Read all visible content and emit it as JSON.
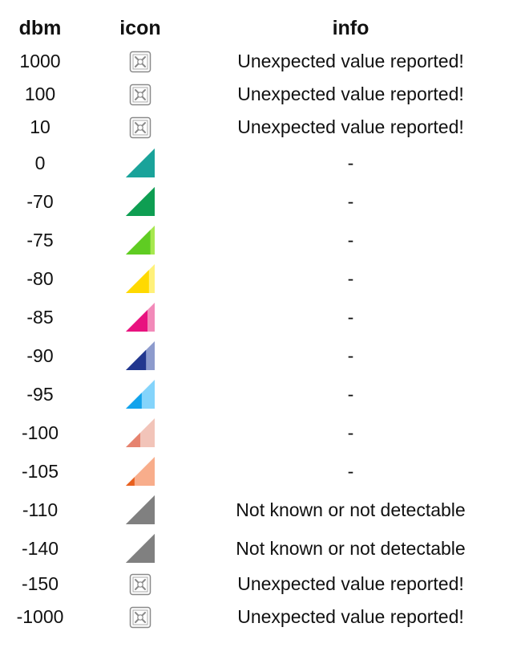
{
  "headers": {
    "dbm": "dbm",
    "icon": "icon",
    "info": "info"
  },
  "rows": [
    {
      "dbm": "1000",
      "icon": "broken-image-icon",
      "info": "Unexpected value reported!"
    },
    {
      "dbm": "100",
      "icon": "broken-image-icon",
      "info": "Unexpected value reported!"
    },
    {
      "dbm": "10",
      "icon": "broken-image-icon",
      "info": "Unexpected value reported!"
    },
    {
      "dbm": "0",
      "icon": "signal-full-icon",
      "info": "-",
      "colors": [
        "#1aa39a",
        "#1aa39a"
      ],
      "level": 1.0
    },
    {
      "dbm": "-70",
      "icon": "signal-full-icon",
      "info": "-",
      "colors": [
        "#0e9e52",
        "#0e9e52"
      ],
      "level": 1.0
    },
    {
      "dbm": "-75",
      "icon": "signal-high-icon",
      "info": "-",
      "colors": [
        "#5fcc22",
        "#a7e84f"
      ],
      "level": 0.85
    },
    {
      "dbm": "-80",
      "icon": "signal-high-icon",
      "info": "-",
      "colors": [
        "#ffd900",
        "#fff17a"
      ],
      "level": 0.8
    },
    {
      "dbm": "-85",
      "icon": "signal-medium-icon",
      "info": "-",
      "colors": [
        "#e8127f",
        "#f28ab9"
      ],
      "level": 0.75
    },
    {
      "dbm": "-90",
      "icon": "signal-medium-icon",
      "info": "-",
      "colors": [
        "#22378f",
        "#8d9bcd"
      ],
      "level": 0.7
    },
    {
      "dbm": "-95",
      "icon": "signal-low-icon",
      "info": "-",
      "colors": [
        "#12a3ec",
        "#84d4fb"
      ],
      "level": 0.55
    },
    {
      "dbm": "-100",
      "icon": "signal-low-icon",
      "info": "-",
      "colors": [
        "#e6836f",
        "#f2c4b9"
      ],
      "level": 0.5
    },
    {
      "dbm": "-105",
      "icon": "signal-minimal-icon",
      "info": "-",
      "colors": [
        "#e8601e",
        "#f8ad8b"
      ],
      "level": 0.3
    },
    {
      "dbm": "-110",
      "icon": "signal-unknown-icon",
      "info": "Not known or not detectable",
      "colors": [
        "#808080",
        "#808080"
      ],
      "level": 1.0
    },
    {
      "dbm": "-140",
      "icon": "signal-unknown-icon",
      "info": "Not known or not detectable",
      "colors": [
        "#808080",
        "#808080"
      ],
      "level": 1.0
    },
    {
      "dbm": "-150",
      "icon": "broken-image-icon",
      "info": "Unexpected value reported!"
    },
    {
      "dbm": "-1000",
      "icon": "broken-image-icon",
      "info": "Unexpected value reported!"
    }
  ]
}
